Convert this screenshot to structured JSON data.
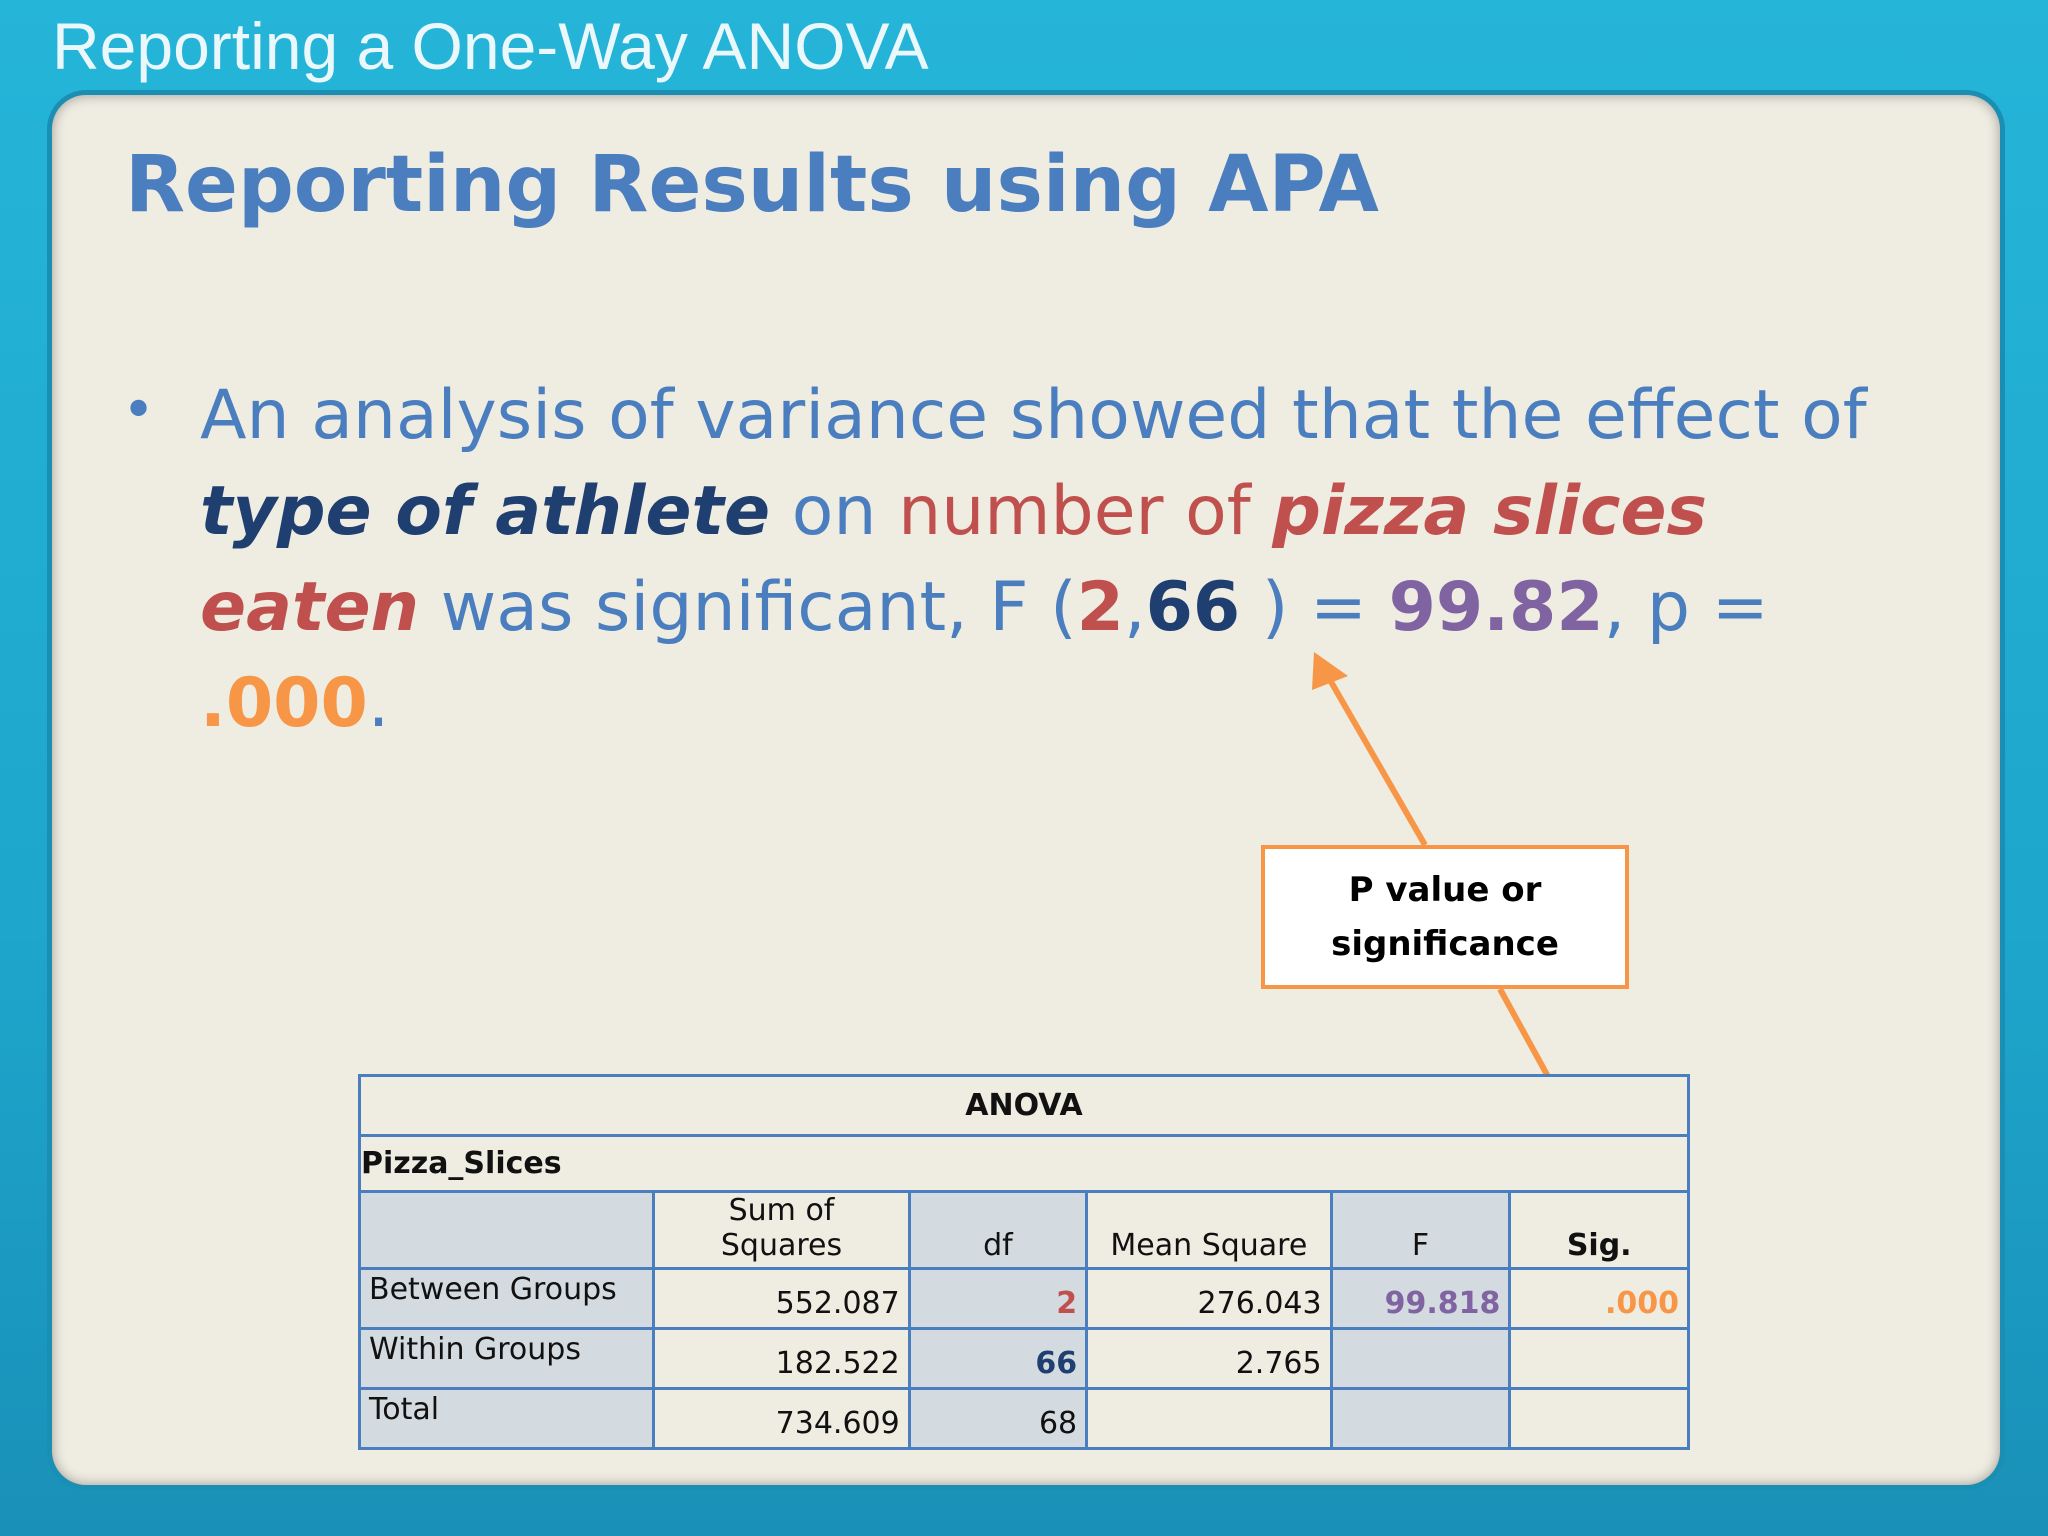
{
  "deck_title": "Reporting a One-Way ANOVA",
  "slide_title": "Reporting Results using APA",
  "bullet": {
    "p1": "An analysis of variance showed that the effect of",
    "p2": "type of athlete",
    "p3": "on",
    "p4": "number of",
    "p5": "pizza slices eaten",
    "p6": "was significant, F (",
    "p7": "2",
    "p8": ",",
    "p9": "66",
    "p10": ") =",
    "p11": "99.82",
    "p12": ", p =",
    "p13": ".000",
    "p14": "."
  },
  "callout": {
    "line1": "P value or",
    "line2": "significance"
  },
  "table": {
    "title": "ANOVA",
    "dependent_variable": "Pizza_Slices",
    "headers": [
      "",
      "Sum of Squares",
      "df",
      "Mean Square",
      "F",
      "Sig."
    ],
    "rows": [
      {
        "label": "Between Groups",
        "ss": "552.087",
        "df": "2",
        "ms": "276.043",
        "f": "99.818",
        "sig": ".000"
      },
      {
        "label": "Within Groups",
        "ss": "182.522",
        "df": "66",
        "ms": "2.765",
        "f": "",
        "sig": ""
      },
      {
        "label": "Total",
        "ss": "734.609",
        "df": "68",
        "ms": "",
        "f": "",
        "sig": ""
      }
    ]
  },
  "colors": {
    "title_blue": "#4a7ebf",
    "dark_navy": "#1f3f70",
    "red": "#c0504d",
    "purple": "#8064a2",
    "orange": "#f79646",
    "frame_teal": "#1ea6cc",
    "panel_bg": "#efece2"
  }
}
